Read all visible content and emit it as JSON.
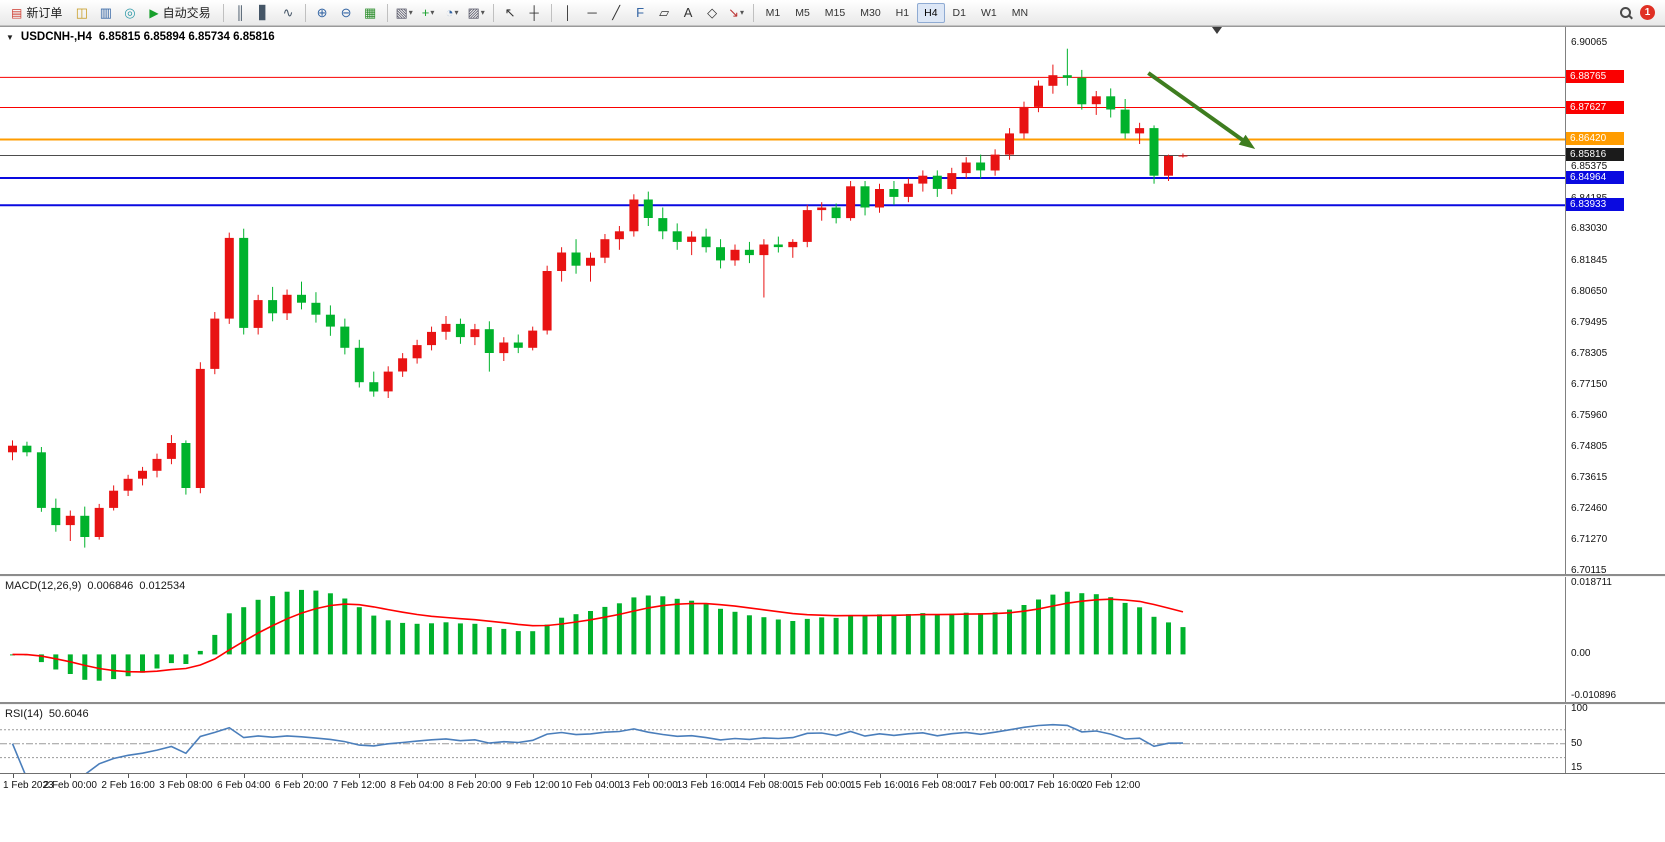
{
  "toolbar": {
    "items": [
      {
        "type": "button",
        "name": "new-order-button",
        "icon": "new-order-icon",
        "label": "新订单"
      },
      {
        "type": "icon",
        "name": "toolbox-button",
        "icon": "toolbox-icon"
      },
      {
        "type": "icon",
        "name": "market-depth-button",
        "icon": "market-depth-icon"
      },
      {
        "type": "icon",
        "name": "virtual-hosting-button",
        "icon": "virtual-hosting-icon"
      },
      {
        "type": "button",
        "name": "algo-trading-button",
        "icon": "algo-trading-icon",
        "label": "自动交易"
      },
      {
        "type": "sep"
      },
      {
        "type": "icon",
        "name": "bar-chart-button",
        "icon": "bar-chart-icon"
      },
      {
        "type": "icon",
        "name": "candlestick-chart-button",
        "icon": "candlestick-chart-icon"
      },
      {
        "type": "icon",
        "name": "line-chart-button",
        "icon": "line-chart-icon"
      },
      {
        "type": "sep"
      },
      {
        "type": "icon",
        "name": "zoom-in-button",
        "icon": "zoom-in-icon"
      },
      {
        "type": "icon",
        "name": "zoom-out-button",
        "icon": "zoom-out-icon"
      },
      {
        "type": "icon",
        "name": "tile-windows-button",
        "icon": "tile-windows-icon"
      },
      {
        "type": "sep"
      },
      {
        "type": "icon",
        "name": "new-chart-button",
        "icon": "new-chart-icon",
        "caret": true
      },
      {
        "type": "icon",
        "name": "indicators-button",
        "icon": "add-indicator-icon",
        "caret": true
      },
      {
        "type": "icon",
        "name": "period-button",
        "icon": "clock-icon",
        "caret": true
      },
      {
        "type": "icon",
        "name": "templates-button",
        "icon": "template-icon",
        "caret": true
      },
      {
        "type": "sep"
      },
      {
        "type": "icon",
        "name": "cursor-button",
        "icon": "cursor-icon"
      },
      {
        "type": "icon",
        "name": "crosshair-button",
        "icon": "crosshair-icon"
      },
      {
        "type": "sep"
      },
      {
        "type": "icon",
        "name": "vertical-line-button",
        "icon": "vertical-line-icon"
      },
      {
        "type": "icon",
        "name": "horizontal-line-button",
        "icon": "horizontal-line-icon"
      },
      {
        "type": "icon",
        "name": "trendline-button",
        "icon": "trendline-icon"
      },
      {
        "type": "icon",
        "name": "fibonacci-button",
        "icon": "fibonacci-icon"
      },
      {
        "type": "icon",
        "name": "channel-button",
        "icon": "channel-icon"
      },
      {
        "type": "icon",
        "name": "text-button",
        "icon": "text-icon"
      },
      {
        "type": "icon",
        "name": "shapes-button",
        "icon": "shapes-icon"
      },
      {
        "type": "icon",
        "name": "arrows-button",
        "icon": "arrows-icon",
        "caret": true
      },
      {
        "type": "sep"
      },
      {
        "type": "timeframes"
      },
      {
        "type": "spacer"
      },
      {
        "type": "search",
        "name": "search-button"
      },
      {
        "type": "badge",
        "name": "notification-badge",
        "label": "1"
      }
    ],
    "timeframes": [
      "M1",
      "M5",
      "M15",
      "M30",
      "H1",
      "H4",
      "D1",
      "W1",
      "MN"
    ],
    "active_timeframe": "H4"
  },
  "chart": {
    "title": "USDCNH-,H4",
    "ohlc": "6.85815 6.85894 6.85734 6.85816"
  },
  "chart_data": {
    "type": "candlestick",
    "symbol": "USDCNH-",
    "timeframe": "H4",
    "ohlc_display": {
      "open": "6.85815",
      "high": "6.85894",
      "low": "6.85734",
      "close": "6.85816"
    },
    "colors": {
      "bull": "#e81313",
      "bear": "#00b22c"
    },
    "x_label_step": 4,
    "x_labels": [
      "1 Feb 2023",
      "2 Feb 00:00",
      "2 Feb 16:00",
      "3 Feb 08:00",
      "6 Feb 04:00",
      "6 Feb 20:00",
      "7 Feb 12:00",
      "8 Feb 04:00",
      "8 Feb 20:00",
      "9 Feb 12:00",
      "10 Feb 04:00",
      "13 Feb 00:00",
      "13 Feb 16:00",
      "14 Feb 08:00",
      "15 Feb 00:00",
      "15 Feb 16:00",
      "16 Feb 08:00",
      "17 Feb 00:00",
      "17 Feb 16:00",
      "20 Feb 12:00"
    ],
    "y_axis": {
      "range": [
        6.70115,
        6.90065
      ],
      "labels": [
        "6.90065",
        "6.85375",
        "6.84185",
        "6.83030",
        "6.81845",
        "6.80650",
        "6.79495",
        "6.78305",
        "6.77150",
        "6.75960",
        "6.74805",
        "6.73615",
        "6.72460",
        "6.71270",
        "6.70115"
      ]
    },
    "price_lines": [
      {
        "label": "6.88765",
        "price": 6.88765,
        "color": "#fa0000",
        "chip": "#fa0000",
        "width": 1
      },
      {
        "label": "6.87627",
        "price": 6.87627,
        "color": "#fa0000",
        "chip": "#fa0000",
        "width": 1
      },
      {
        "label": "6.86420",
        "price": 6.8642,
        "color": "#ff9c00",
        "chip": "#ff9c00",
        "width": 2
      },
      {
        "label": "6.85816",
        "price": 6.85816,
        "color": "#4d4d4d",
        "chip": "#1b1b1b",
        "width": 1
      },
      {
        "label": "6.84964",
        "price": 6.84964,
        "color": "#0a0ae0",
        "chip": "#0a0ae0",
        "width": 2
      },
      {
        "label": "6.83933",
        "price": 6.83933,
        "color": "#0a0ae0",
        "chip": "#0a0ae0",
        "width": 2
      }
    ],
    "annotation_arrow": {
      "from": {
        "bar": 78.6,
        "price": 6.8893
      },
      "to": {
        "bar": 86,
        "price": 6.8606
      },
      "color": "#3e7d1f"
    },
    "candles": [
      [
        6.746,
        6.7505,
        6.743,
        6.7485
      ],
      [
        6.7485,
        6.75,
        6.7445,
        6.746
      ],
      [
        6.746,
        6.748,
        6.7235,
        6.725
      ],
      [
        6.725,
        6.7285,
        6.716,
        6.7185
      ],
      [
        6.7185,
        6.724,
        6.7125,
        6.722
      ],
      [
        6.722,
        6.7255,
        6.71,
        6.714
      ],
      [
        6.714,
        6.7265,
        6.713,
        6.725
      ],
      [
        6.725,
        6.7335,
        6.724,
        6.7315
      ],
      [
        6.7315,
        6.7375,
        6.7295,
        6.736
      ],
      [
        6.736,
        6.7405,
        6.7335,
        6.739
      ],
      [
        6.739,
        6.7455,
        6.7365,
        6.7435
      ],
      [
        6.7435,
        6.7525,
        6.7415,
        6.7495
      ],
      [
        6.7495,
        6.7505,
        6.73,
        6.7325
      ],
      [
        6.7325,
        6.78,
        6.7305,
        6.7775
      ],
      [
        6.7775,
        6.799,
        6.7755,
        6.7965
      ],
      [
        6.7965,
        6.829,
        6.7945,
        6.827
      ],
      [
        6.827,
        6.8305,
        6.7905,
        6.793
      ],
      [
        6.793,
        6.8055,
        6.7905,
        6.8035
      ],
      [
        6.8035,
        6.8085,
        6.7955,
        6.7985
      ],
      [
        6.7985,
        6.8075,
        6.796,
        6.8055
      ],
      [
        6.8055,
        6.8105,
        6.8,
        6.8025
      ],
      [
        6.8025,
        6.8065,
        6.795,
        6.798
      ],
      [
        6.798,
        6.8015,
        6.79,
        6.7935
      ],
      [
        6.7935,
        6.7965,
        6.783,
        6.7855
      ],
      [
        6.7855,
        6.7885,
        6.7705,
        6.7725
      ],
      [
        6.7725,
        6.7765,
        6.767,
        6.769
      ],
      [
        6.769,
        6.7785,
        6.7665,
        6.7765
      ],
      [
        6.7765,
        6.7835,
        6.7745,
        6.7815
      ],
      [
        6.7815,
        6.7885,
        6.7795,
        6.7865
      ],
      [
        6.7865,
        6.7935,
        6.7845,
        6.7915
      ],
      [
        6.7915,
        6.7975,
        6.7885,
        6.7945
      ],
      [
        6.7945,
        6.7965,
        6.787,
        6.7895
      ],
      [
        6.7895,
        6.7945,
        6.7865,
        6.7925
      ],
      [
        6.7925,
        6.7955,
        6.7765,
        6.7835
      ],
      [
        6.7835,
        6.7895,
        6.7805,
        6.7875
      ],
      [
        6.7875,
        6.7905,
        6.7835,
        6.7855
      ],
      [
        6.7855,
        6.7935,
        6.7845,
        6.792
      ],
      [
        6.792,
        6.8165,
        6.7905,
        6.8145
      ],
      [
        6.8145,
        6.8235,
        6.8105,
        6.8215
      ],
      [
        6.8215,
        6.8265,
        6.8135,
        6.8165
      ],
      [
        6.8165,
        6.8215,
        6.8105,
        6.8195
      ],
      [
        6.8195,
        6.8285,
        6.8175,
        6.8265
      ],
      [
        6.8265,
        6.8315,
        6.8225,
        6.8295
      ],
      [
        6.8295,
        6.8435,
        6.8275,
        6.8415
      ],
      [
        6.8415,
        6.8445,
        6.8315,
        6.8345
      ],
      [
        6.8345,
        6.8385,
        6.8265,
        6.8295
      ],
      [
        6.8295,
        6.8325,
        6.8225,
        6.8255
      ],
      [
        6.8255,
        6.8295,
        6.8205,
        6.8275
      ],
      [
        6.8275,
        6.8305,
        6.8215,
        6.8235
      ],
      [
        6.8235,
        6.8265,
        6.8155,
        6.8185
      ],
      [
        6.8185,
        6.8245,
        6.8165,
        6.8225
      ],
      [
        6.8225,
        6.8255,
        6.8175,
        6.8205
      ],
      [
        6.8205,
        6.8265,
        6.8045,
        6.8245
      ],
      [
        6.8245,
        6.8275,
        6.8215,
        6.8235
      ],
      [
        6.8235,
        6.8265,
        6.8195,
        6.8255
      ],
      [
        6.8255,
        6.8395,
        6.8235,
        6.8375
      ],
      [
        6.8375,
        6.8405,
        6.8335,
        6.8385
      ],
      [
        6.8385,
        6.84,
        6.8325,
        6.8345
      ],
      [
        6.8345,
        6.8485,
        6.8335,
        6.8465
      ],
      [
        6.8465,
        6.8485,
        6.8355,
        6.8385
      ],
      [
        6.8385,
        6.8475,
        6.8365,
        6.8455
      ],
      [
        6.8455,
        6.8485,
        6.8395,
        6.8425
      ],
      [
        6.8425,
        6.8495,
        6.8405,
        6.8475
      ],
      [
        6.8475,
        6.8525,
        6.8445,
        6.8505
      ],
      [
        6.8505,
        6.8525,
        6.8425,
        6.8455
      ],
      [
        6.8455,
        6.8535,
        6.8435,
        6.8515
      ],
      [
        6.8515,
        6.8575,
        6.8495,
        6.8555
      ],
      [
        6.8555,
        6.8585,
        6.8495,
        6.8525
      ],
      [
        6.8525,
        6.8605,
        6.8505,
        6.8585
      ],
      [
        6.8585,
        6.8685,
        6.8565,
        6.8665
      ],
      [
        6.8665,
        6.8785,
        6.8645,
        6.8765
      ],
      [
        6.8765,
        6.8865,
        6.8745,
        6.8845
      ],
      [
        6.8845,
        6.8925,
        6.8815,
        6.8885
      ],
      [
        6.8885,
        6.8985,
        6.8845,
        6.8875
      ],
      [
        6.8875,
        6.8905,
        6.8755,
        6.8775
      ],
      [
        6.8775,
        6.8825,
        6.8735,
        6.8805
      ],
      [
        6.8805,
        6.8835,
        6.8725,
        6.8755
      ],
      [
        6.8755,
        6.8795,
        6.8645,
        6.8665
      ],
      [
        6.8665,
        6.8705,
        6.8625,
        6.8685
      ],
      [
        6.8685,
        6.8695,
        6.8475,
        6.8505
      ],
      [
        6.8505,
        6.8585,
        6.8485,
        6.858
      ],
      [
        6.85815,
        6.85894,
        6.85734,
        6.85816
      ]
    ],
    "indicators": {
      "macd": {
        "label": "MACD(12,26,9)",
        "value_main": "0.006846",
        "value_signal": "0.012534",
        "params": [
          12,
          26,
          9
        ],
        "range": [
          -0.010896,
          0.018711
        ],
        "axis": [
          "0.018711",
          "0.00",
          "-0.010896"
        ],
        "hist_color": "#00b22c",
        "signal_color": "#ff0000"
      },
      "rsi": {
        "label": "RSI(14)",
        "value": "50.6046",
        "period": 14,
        "range": [
          15,
          100
        ],
        "levels": [
          70,
          50,
          30
        ],
        "axis": [
          "100",
          "50",
          "15"
        ],
        "color": "#4a7ebb"
      }
    }
  }
}
